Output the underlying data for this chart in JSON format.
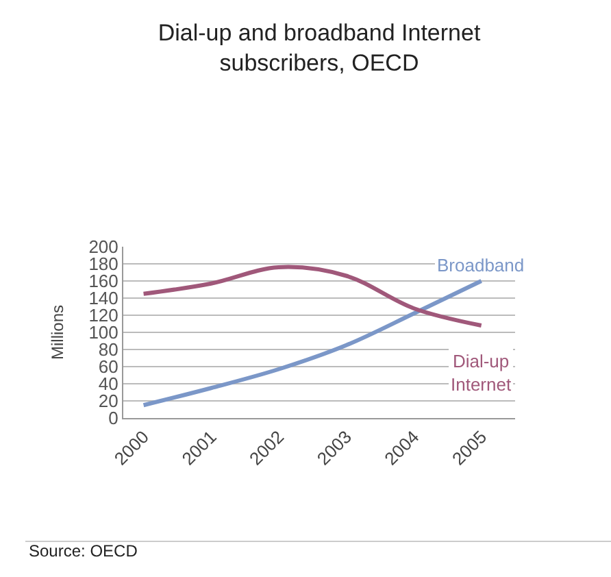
{
  "chart_data": {
    "type": "line",
    "title": "Dial-up and broadband Internet\nsubscribers, OECD",
    "ylabel": "Millions",
    "categories": [
      "2000",
      "2001",
      "2002",
      "2003",
      "2004",
      "2005"
    ],
    "series": [
      {
        "name": "Broadband",
        "color": "#7b97c8",
        "values": [
          15,
          35,
          57,
          85,
          122,
          160
        ]
      },
      {
        "name": "Dial-up\nInternet",
        "color": "#a0587a",
        "values": [
          145,
          157,
          176,
          166,
          128,
          108
        ]
      }
    ],
    "ylim": [
      0,
      200
    ],
    "yticks": [
      0,
      20,
      40,
      60,
      80,
      100,
      120,
      140,
      160,
      180,
      200
    ],
    "grid": "y",
    "legend": false,
    "marker": "none",
    "line_style": "solid",
    "annotations": [
      "Source: OECD"
    ]
  }
}
